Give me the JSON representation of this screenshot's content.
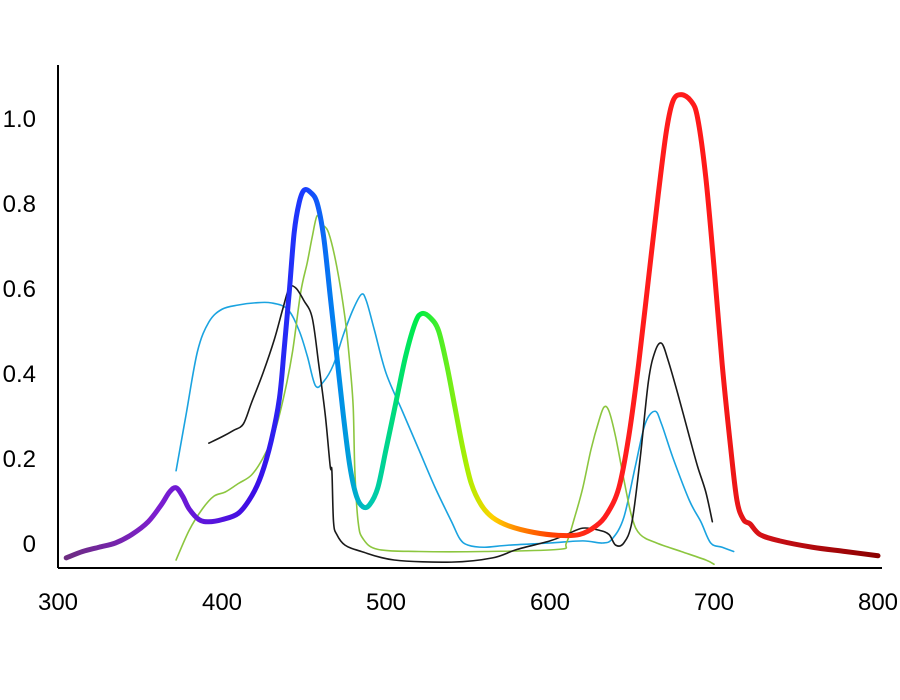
{
  "chart_data": {
    "type": "line",
    "title": "",
    "xlabel": "",
    "ylabel": "",
    "xlim": [
      300,
      800
    ],
    "ylim": [
      -0.05,
      1.1
    ],
    "grid": false,
    "legend": "none",
    "x_ticks": [
      300,
      400,
      500,
      600,
      700,
      800
    ],
    "x_tick_labels": [
      "300",
      "400",
      "500",
      "600",
      "700",
      "800"
    ],
    "y_ticks": [
      0,
      0.2,
      0.4,
      0.6,
      0.8,
      1.0
    ],
    "y_tick_labels": [
      "0",
      "0.2",
      "0.4",
      "0.6",
      "0.8",
      "1.0"
    ],
    "series": [
      {
        "id": "light-blue-curve",
        "color": "#1aa3e0",
        "width": 1.6,
        "points": [
          [
            372,
            0.17
          ],
          [
            378,
            0.3
          ],
          [
            385,
            0.45
          ],
          [
            392,
            0.52
          ],
          [
            400,
            0.55
          ],
          [
            410,
            0.56
          ],
          [
            420,
            0.565
          ],
          [
            430,
            0.565
          ],
          [
            440,
            0.55
          ],
          [
            447,
            0.5
          ],
          [
            452,
            0.44
          ],
          [
            457,
            0.37
          ],
          [
            462,
            0.38
          ],
          [
            468,
            0.42
          ],
          [
            474,
            0.49
          ],
          [
            480,
            0.55
          ],
          [
            485,
            0.585
          ],
          [
            488,
            0.57
          ],
          [
            493,
            0.5
          ],
          [
            500,
            0.4
          ],
          [
            510,
            0.31
          ],
          [
            520,
            0.22
          ],
          [
            530,
            0.13
          ],
          [
            540,
            0.05
          ],
          [
            545,
            0.01
          ],
          [
            550,
            -0.005
          ],
          [
            560,
            -0.01
          ],
          [
            575,
            -0.005
          ],
          [
            600,
            0.0
          ],
          [
            620,
            0.005
          ],
          [
            632,
            0.0
          ],
          [
            638,
            0.01
          ],
          [
            645,
            0.06
          ],
          [
            652,
            0.18
          ],
          [
            658,
            0.28
          ],
          [
            664,
            0.31
          ],
          [
            668,
            0.28
          ],
          [
            675,
            0.2
          ],
          [
            685,
            0.1
          ],
          [
            692,
            0.05
          ],
          [
            698,
            0.0
          ],
          [
            705,
            -0.01
          ],
          [
            712,
            -0.02
          ]
        ]
      },
      {
        "id": "green-curve",
        "color": "#8cc63f",
        "width": 1.6,
        "points": [
          [
            372,
            -0.04
          ],
          [
            380,
            0.03
          ],
          [
            388,
            0.08
          ],
          [
            395,
            0.11
          ],
          [
            402,
            0.12
          ],
          [
            410,
            0.14
          ],
          [
            418,
            0.16
          ],
          [
            425,
            0.2
          ],
          [
            432,
            0.26
          ],
          [
            438,
            0.35
          ],
          [
            443,
            0.45
          ],
          [
            448,
            0.59
          ],
          [
            452,
            0.66
          ],
          [
            455,
            0.72
          ],
          [
            458,
            0.77
          ],
          [
            461,
            0.75
          ],
          [
            465,
            0.73
          ],
          [
            470,
            0.65
          ],
          [
            475,
            0.53
          ],
          [
            478,
            0.42
          ],
          [
            480,
            0.32
          ],
          [
            481,
            0.17
          ],
          [
            483,
            0.05
          ],
          [
            486,
            0.01
          ],
          [
            495,
            -0.015
          ],
          [
            520,
            -0.02
          ],
          [
            560,
            -0.02
          ],
          [
            605,
            -0.015
          ],
          [
            610,
            0.0
          ],
          [
            615,
            0.06
          ],
          [
            620,
            0.13
          ],
          [
            625,
            0.22
          ],
          [
            630,
            0.29
          ],
          [
            633,
            0.32
          ],
          [
            636,
            0.31
          ],
          [
            640,
            0.25
          ],
          [
            645,
            0.15
          ],
          [
            650,
            0.06
          ],
          [
            655,
            0.02
          ],
          [
            665,
            0.0
          ],
          [
            680,
            -0.02
          ],
          [
            695,
            -0.04
          ],
          [
            700,
            -0.05
          ]
        ]
      },
      {
        "id": "black-curve",
        "color": "#1a1a1a",
        "width": 1.6,
        "points": [
          [
            392,
            0.235
          ],
          [
            400,
            0.25
          ],
          [
            407,
            0.265
          ],
          [
            413,
            0.28
          ],
          [
            418,
            0.33
          ],
          [
            425,
            0.4
          ],
          [
            432,
            0.48
          ],
          [
            437,
            0.55
          ],
          [
            441,
            0.6
          ],
          [
            445,
            0.6
          ],
          [
            450,
            0.57
          ],
          [
            455,
            0.53
          ],
          [
            459,
            0.42
          ],
          [
            463,
            0.3
          ],
          [
            466,
            0.18
          ],
          [
            467,
            0.17
          ],
          [
            468,
            0.05
          ],
          [
            470,
            0.02
          ],
          [
            475,
            -0.005
          ],
          [
            485,
            -0.02
          ],
          [
            505,
            -0.04
          ],
          [
            540,
            -0.045
          ],
          [
            565,
            -0.035
          ],
          [
            580,
            -0.015
          ],
          [
            600,
            0.005
          ],
          [
            610,
            0.02
          ],
          [
            620,
            0.035
          ],
          [
            630,
            0.03
          ],
          [
            636,
            0.02
          ],
          [
            640,
            -0.005
          ],
          [
            645,
            0.0
          ],
          [
            650,
            0.05
          ],
          [
            655,
            0.2
          ],
          [
            660,
            0.38
          ],
          [
            664,
            0.45
          ],
          [
            668,
            0.47
          ],
          [
            672,
            0.43
          ],
          [
            678,
            0.35
          ],
          [
            685,
            0.25
          ],
          [
            690,
            0.18
          ],
          [
            695,
            0.12
          ],
          [
            699,
            0.05
          ]
        ]
      },
      {
        "id": "spectrum-curve",
        "color": "gradient",
        "width": 5,
        "gradient_stops": [
          [
            300,
            "#6b2d7a"
          ],
          [
            360,
            "#7d1ecf"
          ],
          [
            420,
            "#3b0de6"
          ],
          [
            450,
            "#1a3cff"
          ],
          [
            470,
            "#0088ee"
          ],
          [
            490,
            "#00c8b4"
          ],
          [
            520,
            "#00ee44"
          ],
          [
            550,
            "#b0ee00"
          ],
          [
            565,
            "#ffd200"
          ],
          [
            580,
            "#ff8800"
          ],
          [
            600,
            "#ff4400"
          ],
          [
            630,
            "#ff1e1e"
          ],
          [
            700,
            "#ff1a1a"
          ],
          [
            740,
            "#c40e14"
          ],
          [
            800,
            "#8b0000"
          ]
        ],
        "points": [
          [
            305,
            -0.035
          ],
          [
            315,
            -0.02
          ],
          [
            325,
            -0.01
          ],
          [
            335,
            0.0
          ],
          [
            345,
            0.02
          ],
          [
            355,
            0.05
          ],
          [
            363,
            0.09
          ],
          [
            368,
            0.12
          ],
          [
            372,
            0.13
          ],
          [
            376,
            0.11
          ],
          [
            380,
            0.08
          ],
          [
            386,
            0.055
          ],
          [
            392,
            0.05
          ],
          [
            400,
            0.055
          ],
          [
            410,
            0.07
          ],
          [
            418,
            0.11
          ],
          [
            424,
            0.16
          ],
          [
            430,
            0.24
          ],
          [
            435,
            0.34
          ],
          [
            438,
            0.46
          ],
          [
            441,
            0.59
          ],
          [
            444,
            0.73
          ],
          [
            447,
            0.8
          ],
          [
            450,
            0.83
          ],
          [
            454,
            0.825
          ],
          [
            458,
            0.8
          ],
          [
            462,
            0.72
          ],
          [
            466,
            0.58
          ],
          [
            470,
            0.44
          ],
          [
            474,
            0.3
          ],
          [
            478,
            0.18
          ],
          [
            482,
            0.11
          ],
          [
            486,
            0.085
          ],
          [
            490,
            0.09
          ],
          [
            495,
            0.13
          ],
          [
            500,
            0.22
          ],
          [
            506,
            0.33
          ],
          [
            512,
            0.44
          ],
          [
            518,
            0.52
          ],
          [
            522,
            0.54
          ],
          [
            527,
            0.53
          ],
          [
            532,
            0.5
          ],
          [
            537,
            0.42
          ],
          [
            542,
            0.32
          ],
          [
            547,
            0.22
          ],
          [
            552,
            0.14
          ],
          [
            558,
            0.09
          ],
          [
            565,
            0.06
          ],
          [
            575,
            0.04
          ],
          [
            590,
            0.025
          ],
          [
            605,
            0.018
          ],
          [
            618,
            0.02
          ],
          [
            628,
            0.04
          ],
          [
            635,
            0.07
          ],
          [
            642,
            0.13
          ],
          [
            648,
            0.25
          ],
          [
            654,
            0.42
          ],
          [
            660,
            0.62
          ],
          [
            666,
            0.82
          ],
          [
            671,
            0.97
          ],
          [
            675,
            1.04
          ],
          [
            680,
            1.055
          ],
          [
            686,
            1.04
          ],
          [
            690,
            1.0
          ],
          [
            695,
            0.86
          ],
          [
            700,
            0.65
          ],
          [
            705,
            0.42
          ],
          [
            710,
            0.23
          ],
          [
            714,
            0.1
          ],
          [
            718,
            0.055
          ],
          [
            722,
            0.045
          ],
          [
            728,
            0.02
          ],
          [
            740,
            0.005
          ],
          [
            760,
            -0.01
          ],
          [
            780,
            -0.02
          ],
          [
            800,
            -0.03
          ]
        ]
      }
    ]
  }
}
